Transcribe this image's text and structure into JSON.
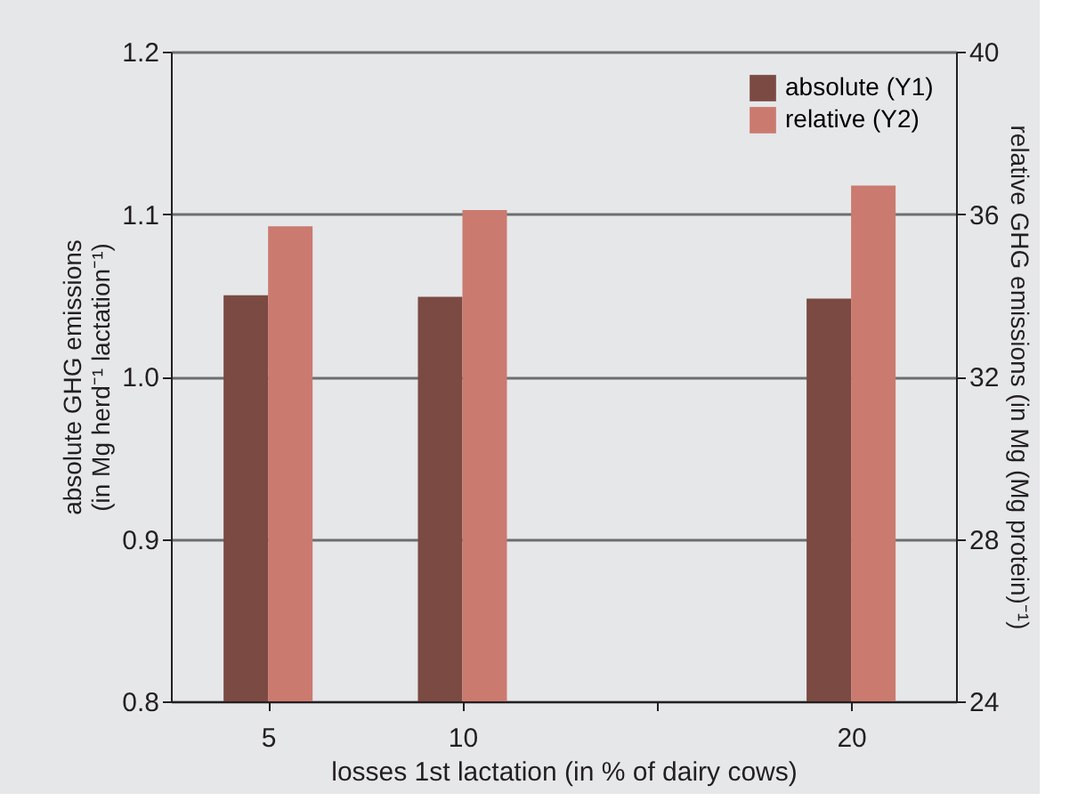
{
  "chart_data": {
    "type": "bar",
    "xlabel": "losses 1st lactation (in % of dairy cows)",
    "ylabel": "absolute GHG emissions\n(in Mg herd⁻¹ lactation⁻¹)",
    "y2label": "relative GHG emissions (in Mg (Mg protein)⁻¹)",
    "x": [
      5,
      10,
      20
    ],
    "series": [
      {
        "name": "absolute (Y1)",
        "color": "#7b4a42",
        "values": [
          1.05,
          1.049,
          1.048
        ]
      },
      {
        "name": "relative (Y2)",
        "color": "#cb7a6f",
        "values": [
          35.7,
          36.1,
          36.7
        ],
        "axis": "y2"
      }
    ],
    "xlim": [
      2.5,
      22.7
    ],
    "xticks": [
      5,
      10,
      {
        "value": 15,
        "label": null
      },
      20
    ],
    "ylim": [
      0.8,
      1.2
    ],
    "yticks": [
      0.8,
      0.9,
      {
        "value": 1,
        "label": "1.0"
      },
      1.1,
      1.2
    ],
    "y2lim": [
      24,
      40
    ],
    "y2ticks": [
      24,
      28,
      32,
      36,
      40
    ],
    "grid": "y",
    "legend": "top right"
  }
}
